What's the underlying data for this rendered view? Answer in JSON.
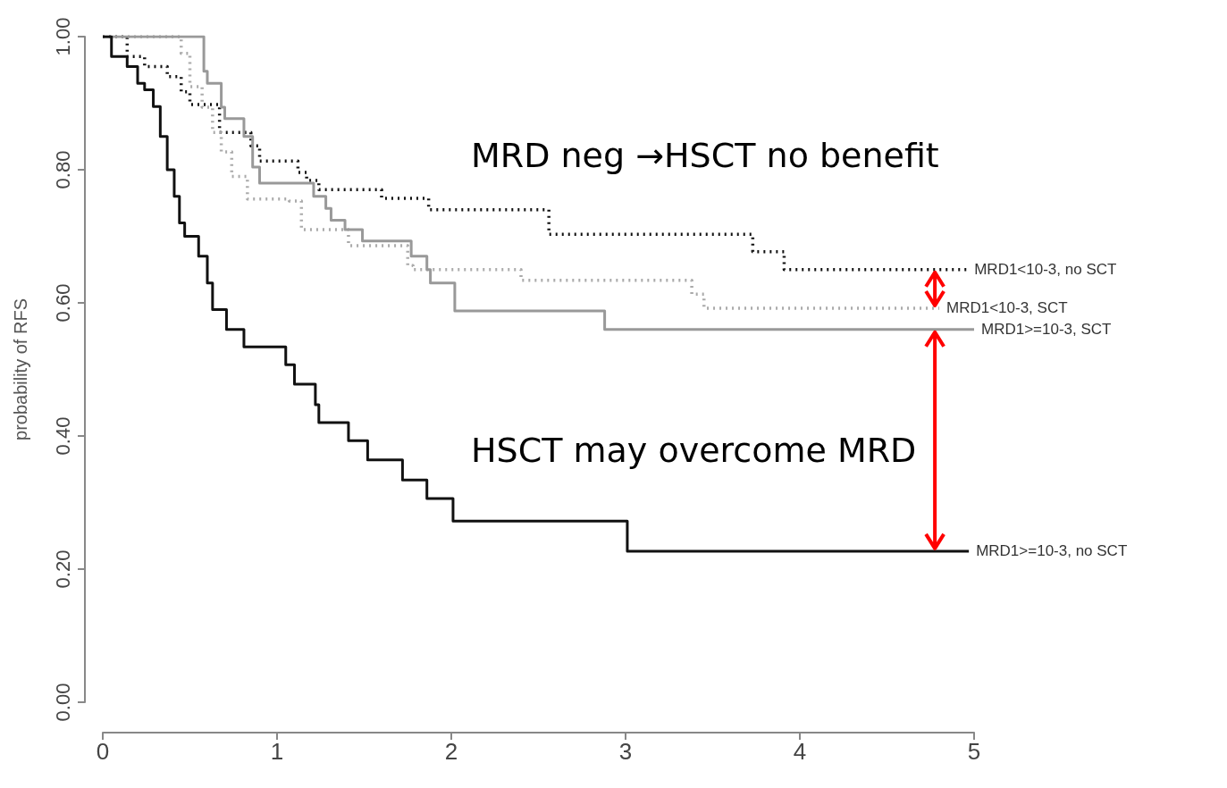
{
  "chart_data": {
    "type": "step",
    "ylabel": "probability of RFS",
    "xlim": [
      0,
      5
    ],
    "xticks": [
      0,
      1,
      2,
      3,
      4,
      5
    ],
    "ylim": [
      0,
      1
    ],
    "yticks": [
      {
        "value": 0,
        "label": "0.00"
      },
      {
        "value": 0.2,
        "label": "0.20"
      },
      {
        "value": 0.4,
        "label": "0.40"
      },
      {
        "value": 0.6,
        "label": "0.60"
      },
      {
        "value": 0.8,
        "label": "0.80"
      },
      {
        "value": 1,
        "label": "1.00"
      }
    ],
    "marker": "none",
    "grid": false,
    "series": [
      {
        "name": "MRD1<10-3, no SCT",
        "color": "#111111",
        "line_style": "dotted",
        "x": [
          0,
          0.14,
          0.24,
          0.37,
          0.45,
          0.5,
          0.67,
          0.85,
          0.9,
          1.12,
          1.17,
          1.24,
          1.6,
          1.87,
          2.56,
          3.73,
          3.91,
          4.96
        ],
        "values": [
          1,
          0.97,
          0.955,
          0.94,
          0.917,
          0.898,
          0.856,
          0.836,
          0.813,
          0.796,
          0.784,
          0.77,
          0.757,
          0.74,
          0.703,
          0.677,
          0.65,
          0.65
        ]
      },
      {
        "name": "MRD1<10-3, SCT",
        "color": "#aaaaaa",
        "line_style": "dotted",
        "x": [
          0,
          0.45,
          0.5,
          0.57,
          0.63,
          0.68,
          0.74,
          0.83,
          1.07,
          1.14,
          1.32,
          1.41,
          1.75,
          1.78,
          2.4,
          3.38,
          3.45,
          4.8
        ],
        "values": [
          1,
          0.975,
          0.925,
          0.894,
          0.856,
          0.827,
          0.79,
          0.756,
          0.753,
          0.71,
          0.71,
          0.686,
          0.656,
          0.65,
          0.634,
          0.613,
          0.592,
          0.592
        ]
      },
      {
        "name": "MRD1>=10-3, SCT",
        "color": "#999999",
        "line_style": "solid",
        "x": [
          0,
          0.58,
          0.6,
          0.68,
          0.7,
          0.81,
          0.86,
          0.9,
          0.91,
          1.21,
          1.28,
          1.31,
          1.39,
          1.49,
          1.77,
          1.86,
          1.88,
          2.02,
          2.88,
          5
        ],
        "values": [
          1,
          0.948,
          0.93,
          0.894,
          0.877,
          0.85,
          0.804,
          0.78,
          0.78,
          0.76,
          0.742,
          0.724,
          0.71,
          0.693,
          0.67,
          0.65,
          0.63,
          0.588,
          0.56,
          0.56
        ]
      },
      {
        "name": "MRD1>=10-3, no SCT",
        "color": "#111111",
        "line_style": "solid",
        "x": [
          0,
          0.05,
          0.14,
          0.2,
          0.24,
          0.29,
          0.33,
          0.37,
          0.41,
          0.44,
          0.47,
          0.55,
          0.6,
          0.63,
          0.71,
          0.81,
          1.05,
          1.1,
          1.22,
          1.24,
          1.41,
          1.52,
          1.72,
          1.86,
          2.01,
          3.01,
          4.97
        ],
        "values": [
          1,
          0.97,
          0.955,
          0.93,
          0.92,
          0.895,
          0.85,
          0.8,
          0.76,
          0.72,
          0.7,
          0.67,
          0.63,
          0.59,
          0.56,
          0.534,
          0.507,
          0.478,
          0.447,
          0.42,
          0.393,
          0.364,
          0.334,
          0.306,
          0.272,
          0.227,
          0.227
        ]
      }
    ],
    "annotations": [
      "MRD neg →HSCT no benefit",
      "HSCT may overcome MRD"
    ]
  }
}
